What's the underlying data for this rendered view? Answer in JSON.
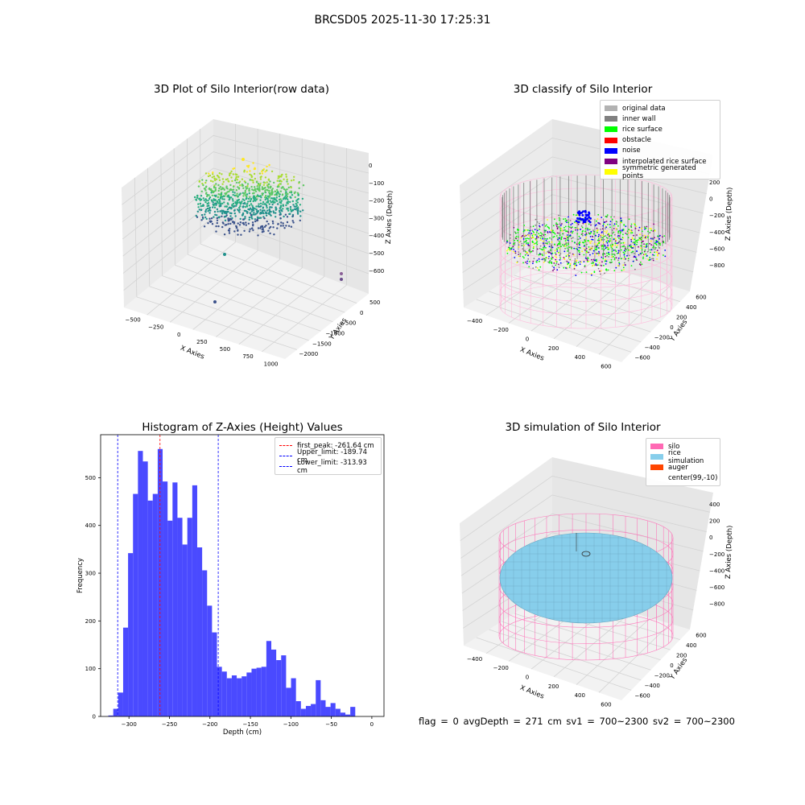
{
  "figure": {
    "suptitle": "BRCSD05 2025-11-30 17:25:31",
    "status_text": "flag = 0     avgDepth = 271 cm  sv1 = 700~2300  sv2 = 700~2300"
  },
  "panels": {
    "raw": {
      "title": "3D Plot of Silo Interior(row data)",
      "xlabel": "X Axies",
      "ylabel": "Y Axies",
      "zlabel": "Z Axies (Depth)",
      "xticks": [
        "−500",
        "−250",
        "0",
        "250",
        "500",
        "750",
        "1000"
      ],
      "yticks": [
        "500",
        "0",
        "−500",
        "−1000",
        "−1500",
        "−2000"
      ],
      "zticks": [
        "0",
        "−100",
        "−200",
        "−300",
        "−400",
        "−500",
        "−600"
      ],
      "colormap": "viridis"
    },
    "classify": {
      "title": "3D classify of Silo Interior",
      "xlabel": "X Axies",
      "ylabel": "Y Axies",
      "zlabel": "Z Axies (Depth)",
      "xticks": [
        "−400",
        "−200",
        "0",
        "200",
        "400",
        "600"
      ],
      "yticks": [
        "600",
        "400",
        "200",
        "0",
        "−200",
        "−400",
        "−600"
      ],
      "zticks": [
        "200",
        "0",
        "−200",
        "−400",
        "−600",
        "−800"
      ],
      "legend": [
        {
          "label": "original data",
          "color": "#b2b2b2"
        },
        {
          "label": "inner wall",
          "color": "#808080"
        },
        {
          "label": "rice surface",
          "color": "#00ff00"
        },
        {
          "label": "obstacle",
          "color": "#ff0000"
        },
        {
          "label": "noise",
          "color": "#0000ff"
        },
        {
          "label": "interpolated rice surface",
          "color": "#800080"
        },
        {
          "label": "symmetric generated points",
          "color": "#ffff00"
        }
      ]
    },
    "simulation": {
      "title": "3D simulation of Silo Interior",
      "xlabel": "X Axies",
      "ylabel": "Y Axies",
      "zlabel": "Z Axies (Depth)",
      "xticks": [
        "−400",
        "−200",
        "0",
        "200",
        "400",
        "600"
      ],
      "yticks": [
        "600",
        "400",
        "200",
        "0",
        "−200",
        "−400",
        "−600"
      ],
      "zticks": [
        "400",
        "200",
        "0",
        "−200",
        "−400",
        "−600",
        "−800"
      ],
      "legend": [
        {
          "label": "silo",
          "color": "#ff69b4"
        },
        {
          "label": "rice simulation",
          "color": "#87ceeb"
        },
        {
          "label": "auger",
          "color": "#ff4500"
        },
        {
          "label": "center(99,-10)",
          "color": ""
        }
      ]
    }
  },
  "chart_data": {
    "type": "bar",
    "title": "Histogram of Z-Axies (Height) Values",
    "xlabel": "Depth (cm)",
    "ylabel": "Frequency",
    "xlim": [
      -335,
      15
    ],
    "ylim": [
      0,
      590
    ],
    "xticks": [
      -300,
      -250,
      -200,
      -150,
      -100,
      -50,
      0
    ],
    "yticks": [
      0,
      100,
      200,
      300,
      400,
      500
    ],
    "bar_color": "#4a4aff",
    "bin_edges_start": -325.5,
    "bin_width": 6.1,
    "values": [
      2,
      16,
      50,
      186,
      342,
      466,
      556,
      534,
      452,
      466,
      560,
      492,
      410,
      490,
      416,
      360,
      416,
      484,
      354,
      306,
      232,
      176,
      104,
      94,
      80,
      86,
      80,
      84,
      92,
      100,
      102,
      104,
      158,
      140,
      118,
      128,
      60,
      80,
      32,
      16,
      22,
      26,
      76,
      34,
      20,
      28,
      16,
      8,
      4,
      20
    ],
    "vlines": [
      {
        "x": -261.64,
        "label": "first_peak: -261.64 cm",
        "color": "#ff0000"
      },
      {
        "x": -189.74,
        "label": "Upper_limit: -189.74 cm",
        "color": "#0000ff"
      },
      {
        "x": -313.93,
        "label": "Lower_limit: -313.93 cm",
        "color": "#0000ff"
      }
    ],
    "legend_position": "top-right"
  }
}
